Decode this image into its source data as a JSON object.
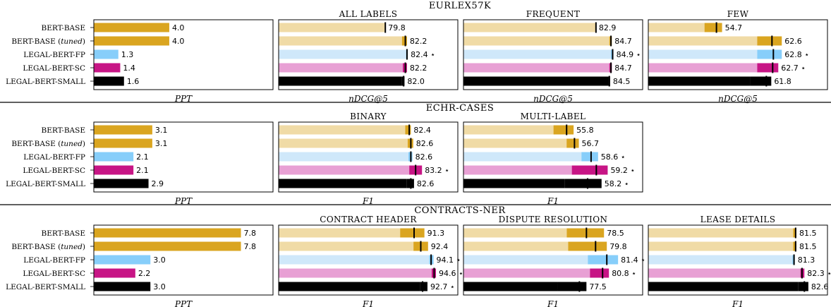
{
  "sections": [
    {
      "id": "eurlex",
      "title": "EURLEX57K"
    },
    {
      "id": "echr",
      "title": "ECHR-CASES"
    },
    {
      "id": "contracts",
      "title": "CONTRACTS-NER"
    }
  ],
  "models": [
    {
      "label": "BERT-BASE",
      "key": "base"
    },
    {
      "label": "BERT-BASE (tuned)",
      "key": "tuned"
    },
    {
      "label": "LEGAL-BERT-FP",
      "key": "fp"
    },
    {
      "label": "LEGAL-BERT-SC",
      "key": "sc"
    },
    {
      "label": "LEGAL-BERT-SMALL",
      "key": "small"
    }
  ],
  "colors": {
    "base": "#daa520",
    "base_light": "#f0dba6",
    "fp": "#87cefa",
    "fp_light": "#cfe8fa",
    "sc": "#c71585",
    "sc_light": "#e8a0d4",
    "marker": "#000000"
  },
  "star": "⋆",
  "chart_data": [
    {
      "section": "eurlex",
      "type": "bar",
      "title": "",
      "xlabel": "PPT",
      "kind": "perplexity",
      "series": [
        {
          "name": "value",
          "values": [
            4.0,
            4.0,
            1.3,
            1.4,
            1.6
          ]
        }
      ],
      "labels": [
        "4.0",
        "4.0",
        "1.3",
        "1.4",
        "1.6"
      ],
      "xlim": [
        0,
        9.5
      ]
    },
    {
      "section": "eurlex",
      "type": "bar",
      "title": "ALL LABELS",
      "xlabel": "nDCG@5",
      "kind": "score",
      "series": [
        {
          "name": "low",
          "values": [
            79.8,
            81.8,
            82.3,
            81.9,
            81.8
          ]
        },
        {
          "name": "mean",
          "values": [
            79.8,
            82.2,
            82.4,
            82.2,
            82.0
          ]
        },
        {
          "name": "high",
          "values": [
            79.8,
            82.4,
            82.5,
            82.4,
            82.1
          ]
        }
      ],
      "labels": [
        "79.8",
        "82.2",
        "82.4",
        "82.2",
        "82.0"
      ],
      "stars": [
        false,
        false,
        true,
        false,
        false
      ],
      "xlim": [
        67,
        88.5
      ]
    },
    {
      "section": "eurlex",
      "type": "bar",
      "title": "FREQUENT",
      "xlabel": "nDCG@5",
      "kind": "score",
      "series": [
        {
          "name": "low",
          "values": [
            82.9,
            84.5,
            84.7,
            84.5,
            84.4
          ]
        },
        {
          "name": "mean",
          "values": [
            82.9,
            84.7,
            84.9,
            84.7,
            84.5
          ]
        },
        {
          "name": "high",
          "values": [
            82.9,
            84.8,
            85.0,
            84.8,
            84.6
          ]
        }
      ],
      "labels": [
        "82.9",
        "84.7",
        "84.9",
        "84.7",
        "84.5"
      ],
      "stars": [
        false,
        false,
        true,
        false,
        false
      ],
      "xlim": [
        67,
        88.5
      ]
    },
    {
      "section": "eurlex",
      "type": "bar",
      "title": "FEW",
      "xlabel": "nDCG@5",
      "kind": "score",
      "series": [
        {
          "name": "low",
          "values": [
            53.0,
            60.5,
            60.5,
            60.5,
            59.5
          ]
        },
        {
          "name": "mean",
          "values": [
            54.7,
            62.6,
            62.8,
            62.7,
            61.8
          ]
        },
        {
          "name": "high",
          "values": [
            55.5,
            64.0,
            64.0,
            63.5,
            62.5
          ]
        }
      ],
      "labels": [
        "54.7",
        "62.6",
        "62.8",
        "62.7",
        "61.8"
      ],
      "stars": [
        false,
        false,
        true,
        true,
        false
      ],
      "xlim": [
        45,
        70.5
      ]
    },
    {
      "section": "echr",
      "type": "bar",
      "title": "",
      "xlabel": "PPT",
      "kind": "perplexity",
      "series": [
        {
          "name": "value",
          "values": [
            3.1,
            3.1,
            2.1,
            2.1,
            2.9
          ]
        }
      ],
      "labels": [
        "3.1",
        "3.1",
        "2.1",
        "2.1",
        "2.9"
      ],
      "xlim": [
        0,
        9.5
      ]
    },
    {
      "section": "echr",
      "type": "bar",
      "title": "BINARY",
      "xlabel": "F1",
      "kind": "score",
      "series": [
        {
          "name": "low",
          "values": [
            81.9,
            82.2,
            82.3,
            82.4,
            82.1
          ]
        },
        {
          "name": "mean",
          "values": [
            82.4,
            82.6,
            82.6,
            83.2,
            82.6
          ]
        },
        {
          "name": "high",
          "values": [
            82.6,
            82.9,
            82.8,
            84.0,
            83.0
          ]
        }
      ],
      "labels": [
        "82.4",
        "82.6",
        "82.6",
        "83.2",
        "82.6"
      ],
      "stars": [
        false,
        false,
        false,
        true,
        false
      ],
      "xlim": [
        66,
        88.5
      ]
    },
    {
      "section": "echr",
      "type": "bar",
      "title": "MULTI-LABEL",
      "xlabel": "F1",
      "kind": "score",
      "series": [
        {
          "name": "low",
          "values": [
            54.3,
            55.8,
            57.5,
            56.4,
            55.6
          ]
        },
        {
          "name": "mean",
          "values": [
            55.8,
            56.7,
            58.6,
            59.2,
            58.2
          ]
        },
        {
          "name": "high",
          "values": [
            56.6,
            57.2,
            59.4,
            60.5,
            59.8
          ]
        }
      ],
      "labels": [
        "55.8",
        "56.7",
        "58.6",
        "59.2",
        "58.2"
      ],
      "stars": [
        false,
        false,
        true,
        true,
        true
      ],
      "xlim": [
        44,
        64.5
      ]
    },
    {
      "section": "contracts",
      "type": "bar",
      "title": "",
      "xlabel": "PPT",
      "kind": "perplexity",
      "series": [
        {
          "name": "value",
          "values": [
            7.8,
            7.8,
            3.0,
            2.2,
            3.0
          ]
        }
      ],
      "labels": [
        "7.8",
        "7.8",
        "3.0",
        "2.2",
        "3.0"
      ],
      "xlim": [
        0,
        9.5
      ]
    },
    {
      "section": "contracts",
      "type": "bar",
      "title": "CONTRACT HEADER",
      "xlabel": "F1",
      "kind": "score",
      "series": [
        {
          "name": "low",
          "values": [
            89.0,
            91.2,
            93.8,
            94.2,
            92.3
          ]
        },
        {
          "name": "mean",
          "values": [
            91.3,
            92.4,
            94.1,
            94.6,
            92.7
          ]
        },
        {
          "name": "high",
          "values": [
            93.0,
            93.6,
            94.5,
            94.9,
            93.5
          ]
        }
      ],
      "labels": [
        "91.3",
        "92.4",
        "94.1",
        "94.6",
        "92.7"
      ],
      "stars": [
        false,
        false,
        true,
        true,
        true
      ],
      "xlim": [
        69,
        98.5
      ]
    },
    {
      "section": "contracts",
      "type": "bar",
      "title": "DISPUTE RESOLUTION",
      "xlabel": "F1",
      "kind": "score",
      "series": [
        {
          "name": "low",
          "values": [
            75.7,
            75.9,
            78.7,
            79.0,
            74.4
          ]
        },
        {
          "name": "mean",
          "values": [
            78.5,
            79.8,
            81.4,
            80.8,
            77.5
          ]
        },
        {
          "name": "high",
          "values": [
            81.0,
            81.4,
            83.0,
            81.7,
            78.5
          ]
        }
      ],
      "labels": [
        "78.5",
        "79.8",
        "81.4",
        "80.8",
        "77.5"
      ],
      "stars": [
        false,
        false,
        true,
        true,
        false
      ],
      "xlim": [
        61,
        86.5
      ]
    },
    {
      "section": "contracts",
      "type": "bar",
      "title": "LEASE DETAILS",
      "xlabel": "F1",
      "kind": "score",
      "series": [
        {
          "name": "low",
          "values": [
            81.2,
            81.2,
            81.1,
            82.1,
            81.8
          ]
        },
        {
          "name": "mean",
          "values": [
            81.5,
            81.5,
            81.3,
            82.3,
            82.6
          ]
        },
        {
          "name": "high",
          "values": [
            81.6,
            81.6,
            81.4,
            82.6,
            83.1
          ]
        }
      ],
      "labels": [
        "81.5",
        "81.5",
        "81.3",
        "82.3",
        "82.6"
      ],
      "stars": [
        false,
        false,
        false,
        true,
        true
      ],
      "xlim": [
        63,
        85.5
      ]
    }
  ]
}
